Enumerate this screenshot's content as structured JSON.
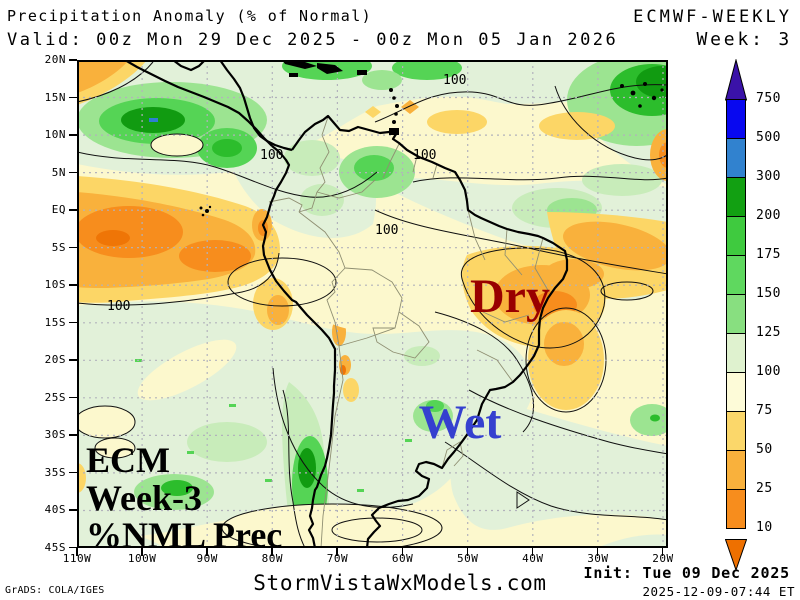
{
  "header": {
    "title": "Precipitation Anomaly (% of Normal)",
    "model": "ECMWF-WEEKLY",
    "valid": "Valid: 00z Mon 29 Dec 2025 - 00z Mon 05 Jan 2026",
    "week": "Week: 3"
  },
  "map": {
    "lat_labels": [
      "20N",
      "15N",
      "10N",
      "5N",
      "EQ",
      "5S",
      "10S",
      "15S",
      "20S",
      "25S",
      "30S",
      "35S",
      "40S",
      "45S"
    ],
    "lon_labels": [
      "110W",
      "100W",
      "90W",
      "80W",
      "70W",
      "60W",
      "50W",
      "40W",
      "30W",
      "20W"
    ],
    "contour_label": "100",
    "annotations": {
      "dry": "Dry",
      "wet": "Wet",
      "watermark_line1": "ECM",
      "watermark_line2": "Week-3",
      "watermark_line3": "%NML Prec"
    }
  },
  "colorbar": {
    "labels": [
      "750",
      "500",
      "300",
      "200",
      "175",
      "150",
      "125",
      "100",
      "75",
      "50",
      "25",
      "10"
    ],
    "segment_colors": [
      "#0808f0",
      "#3182cf",
      "#12a012",
      "#3fca3f",
      "#5fd85f",
      "#88df80",
      "#dff2cf",
      "#fdfbd8",
      "#fbd76a",
      "#f9b13c",
      "#f78d1d"
    ],
    "arrow_top_color": "#3a12a8",
    "arrow_bottom_color": "#ee7000"
  },
  "colors": {
    "dry_label": "#990000",
    "wet_label": "#3540cf"
  },
  "footer": {
    "credit": "GrADS: COLA/IGES",
    "site": "StormVistaWxModels.com",
    "init": "Init: Tue 09 Dec 2025",
    "timestamp": "2025-12-09-07:44 ET"
  }
}
